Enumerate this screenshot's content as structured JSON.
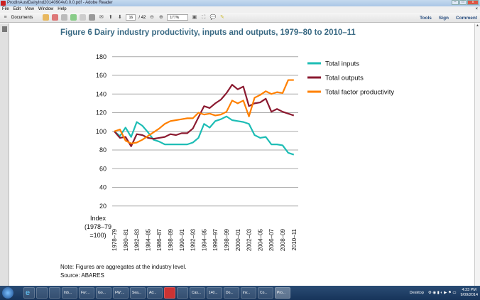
{
  "window": {
    "title": "ProdInAustDairyInd20140904v0.0.0.pdf - Adobe Reader"
  },
  "menu": [
    "File",
    "Edit",
    "View",
    "Window",
    "Help"
  ],
  "toolbar": {
    "documents_label": "Documents",
    "page_current": "16",
    "page_total": "/ 42",
    "zoom": "177%",
    "tools": "Tools",
    "sign": "Sign",
    "comment": "Comment"
  },
  "figure": {
    "title": "Figure 6 Dairy industry productivity, inputs and outputs, 1979–80 to 2010–11",
    "note": "Note: Figures are aggregates at the industry level.",
    "source": "Source: ABARES"
  },
  "chart_data": {
    "type": "line",
    "ylabel": "Index (1978–79 =100)",
    "ylabel_lines": [
      "Index",
      "(1978–79",
      "=100)"
    ],
    "ylim": [
      20,
      180
    ],
    "yticks": [
      20,
      40,
      60,
      80,
      100,
      120,
      140,
      160,
      180
    ],
    "grid": "horizontal",
    "legend": "top-right",
    "x": [
      "1978–79",
      "1979–80",
      "1980–81",
      "1981–82",
      "1982–83",
      "1983–84",
      "1984–85",
      "1985–86",
      "1986–87",
      "1987–88",
      "1988–89",
      "1989–90",
      "1990–91",
      "1991–92",
      "1992–93",
      "1993–94",
      "1994–95",
      "1995–96",
      "1996–97",
      "1997–98",
      "1998–99",
      "1999–00",
      "2000–01",
      "2001–02",
      "2002–03",
      "2003–04",
      "2004–05",
      "2005–06",
      "2006–07",
      "2007–08",
      "2008–09",
      "2009–10",
      "2010–11"
    ],
    "xtick_labels": [
      "1978–79",
      "1980–81",
      "1982–83",
      "1984–85",
      "1986–87",
      "1988–89",
      "1990–91",
      "1992–93",
      "1994–95",
      "1996–97",
      "1998–99",
      "2000–01",
      "2002–03",
      "2004–05",
      "2006–07",
      "2008–09",
      "2010–11"
    ],
    "series": [
      {
        "name": "Total inputs",
        "color": "#1dbdb5",
        "values": [
          100,
          95,
          104,
          94,
          110,
          106,
          99,
          91,
          89,
          86,
          86,
          86,
          86,
          86,
          88,
          93,
          108,
          104,
          111,
          113,
          116,
          112,
          111,
          110,
          108,
          96,
          93,
          94,
          86,
          86,
          85,
          77,
          75
        ]
      },
      {
        "name": "Total outputs",
        "color": "#8b1a30",
        "values": [
          100,
          93,
          94,
          84,
          97,
          96,
          93,
          92,
          93,
          94,
          97,
          96,
          98,
          98,
          103,
          115,
          127,
          125,
          130,
          134,
          141,
          150,
          145,
          148,
          127,
          130,
          131,
          135,
          121,
          124,
          121,
          119,
          117
        ]
      },
      {
        "name": "Total factor productivity",
        "color": "#ff8000",
        "values": [
          100,
          102,
          90,
          87,
          88,
          91,
          95,
          99,
          103,
          108,
          111,
          112,
          113,
          114,
          114,
          120,
          118,
          119,
          117,
          118,
          121,
          133,
          130,
          133,
          116,
          136,
          139,
          143,
          140,
          142,
          141,
          155,
          155
        ]
      }
    ]
  },
  "taskbar": {
    "items": [
      "Inb...",
      "Fw:...",
      "Go...",
      "FW:...",
      "Sea...",
      "Ad...",
      "",
      "",
      "Cas...",
      "140...",
      "Do...",
      "inv...",
      "Co...",
      "Pro..."
    ],
    "desktop": "Desktop",
    "time": "4:23 PM",
    "date": "9/09/2014"
  }
}
